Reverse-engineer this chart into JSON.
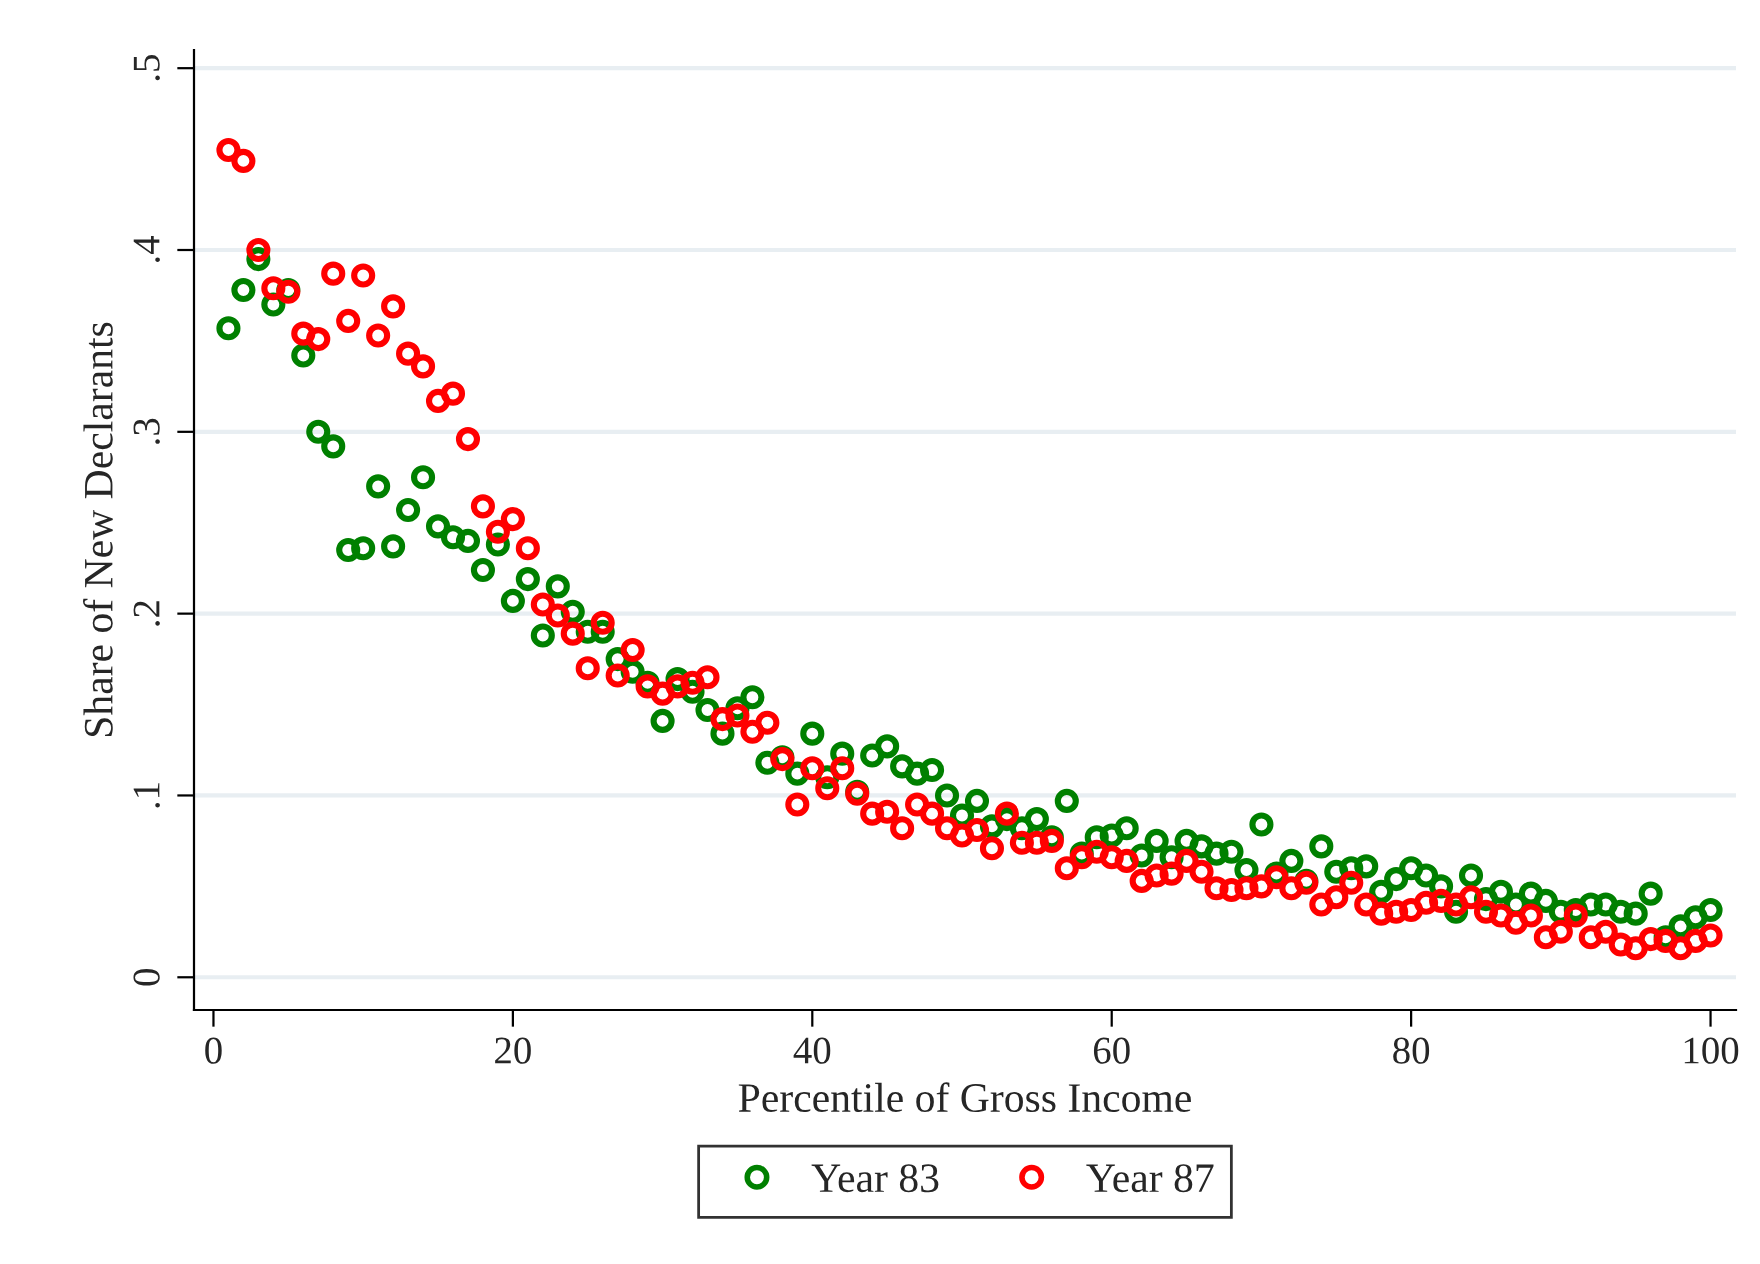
{
  "chart_data": {
    "type": "scatter",
    "xlabel": "Percentile of Gross Income",
    "ylabel": "Share of New Declarants",
    "x": [
      1,
      2,
      3,
      4,
      5,
      6,
      7,
      8,
      9,
      10,
      11,
      12,
      13,
      14,
      15,
      16,
      17,
      18,
      19,
      20,
      21,
      22,
      23,
      24,
      25,
      26,
      27,
      28,
      29,
      30,
      31,
      32,
      33,
      34,
      35,
      36,
      37,
      38,
      39,
      40,
      41,
      42,
      43,
      44,
      45,
      46,
      47,
      48,
      49,
      50,
      51,
      52,
      53,
      54,
      55,
      56,
      57,
      58,
      59,
      60,
      61,
      62,
      63,
      64,
      65,
      66,
      67,
      68,
      69,
      70,
      71,
      72,
      73,
      74,
      75,
      76,
      77,
      78,
      79,
      80,
      81,
      82,
      83,
      84,
      85,
      86,
      87,
      88,
      89,
      90,
      91,
      92,
      93,
      94,
      95,
      96,
      97,
      98,
      99,
      100
    ],
    "series": [
      {
        "name": "Year 83",
        "color": "#008000",
        "values": [
          0.357,
          0.378,
          0.395,
          0.37,
          0.378,
          0.342,
          0.3,
          0.292,
          0.235,
          0.236,
          0.27,
          0.237,
          0.257,
          0.275,
          0.248,
          0.242,
          0.24,
          0.224,
          0.238,
          0.207,
          0.219,
          0.188,
          0.215,
          0.201,
          0.19,
          0.19,
          0.175,
          0.168,
          0.162,
          0.141,
          0.164,
          0.157,
          0.147,
          0.134,
          0.148,
          0.154,
          0.118,
          0.121,
          0.112,
          0.134,
          0.11,
          0.123,
          0.102,
          0.122,
          0.127,
          0.116,
          0.112,
          0.114,
          0.1,
          0.089,
          0.097,
          0.083,
          0.087,
          0.082,
          0.087,
          0.077,
          0.097,
          0.068,
          0.077,
          0.078,
          0.082,
          0.067,
          0.075,
          0.066,
          0.075,
          0.072,
          0.068,
          0.069,
          0.059,
          0.084,
          0.057,
          0.064,
          0.053,
          0.072,
          0.058,
          0.06,
          0.061,
          0.047,
          0.054,
          0.06,
          0.056,
          0.05,
          0.036,
          0.056,
          0.043,
          0.047,
          0.04,
          0.046,
          0.042,
          0.036,
          0.037,
          0.04,
          0.04,
          0.036,
          0.035,
          0.046,
          0.022,
          0.028,
          0.033,
          0.037
        ]
      },
      {
        "name": "Year 87",
        "color": "#ff0000",
        "values": [
          0.455,
          0.449,
          0.4,
          0.379,
          0.377,
          0.354,
          0.351,
          0.387,
          0.361,
          0.386,
          0.353,
          0.369,
          0.343,
          0.336,
          0.317,
          0.321,
          0.296,
          0.259,
          0.245,
          0.252,
          0.236,
          0.205,
          0.199,
          0.189,
          0.17,
          0.195,
          0.166,
          0.18,
          0.16,
          0.156,
          0.16,
          0.162,
          0.165,
          0.142,
          0.144,
          0.135,
          0.14,
          0.12,
          0.095,
          0.115,
          0.104,
          0.115,
          0.101,
          0.09,
          0.091,
          0.082,
          0.095,
          0.09,
          0.082,
          0.078,
          0.081,
          0.071,
          0.09,
          0.074,
          0.074,
          0.075,
          0.06,
          0.066,
          0.069,
          0.066,
          0.064,
          0.053,
          0.056,
          0.057,
          0.064,
          0.058,
          0.049,
          0.048,
          0.049,
          0.05,
          0.055,
          0.049,
          0.052,
          0.04,
          0.044,
          0.052,
          0.04,
          0.035,
          0.036,
          0.037,
          0.041,
          0.042,
          0.04,
          0.044,
          0.036,
          0.034,
          0.03,
          0.034,
          0.022,
          0.025,
          0.034,
          0.022,
          0.025,
          0.018,
          0.016,
          0.021,
          0.02,
          0.016,
          0.02,
          0.023
        ]
      }
    ],
    "xlim": [
      -1.3,
      101.7
    ],
    "ylim": [
      -0.018,
      0.51
    ],
    "xticks": [
      0,
      20,
      40,
      60,
      80,
      100
    ],
    "yticks": [
      0,
      {
        "value": 0.1,
        "label": ".1"
      },
      {
        "value": 0.2,
        "label": ".2"
      },
      {
        "value": 0.3,
        "label": ".3"
      },
      {
        "value": 0.4,
        "label": ".4"
      },
      {
        "value": 0.5,
        "label": ".5"
      }
    ],
    "grid": "y",
    "legend": "bottom",
    "marker": "circle"
  }
}
